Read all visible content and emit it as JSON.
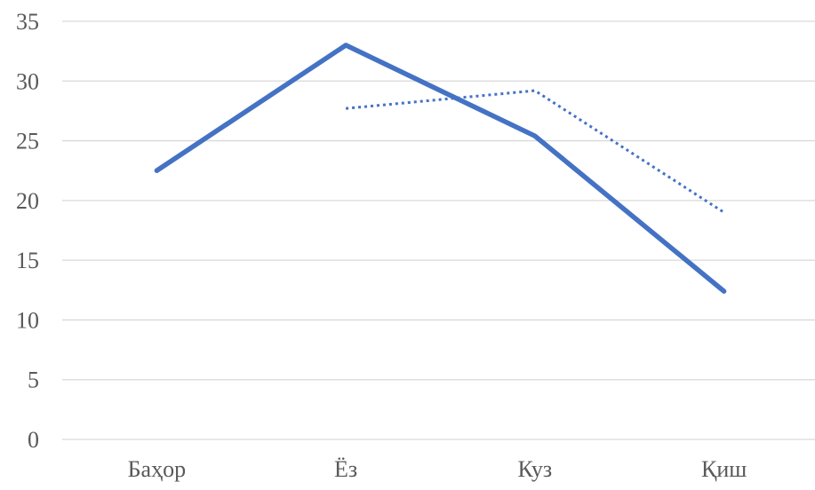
{
  "chart_data": {
    "type": "line",
    "title": "",
    "xlabel": "",
    "ylabel": "",
    "categories": [
      "Баҳор",
      "Ёз",
      "Куз",
      "Қиш"
    ],
    "ylim": [
      0,
      35
    ],
    "yticks": [
      0,
      5,
      10,
      15,
      20,
      25,
      30,
      35
    ],
    "grid": true,
    "legend": "none",
    "series": [
      {
        "values": [
          22.5,
          33.0,
          25.4,
          12.4
        ],
        "color": "#4472c4",
        "style": "solid"
      },
      {
        "values": [
          null,
          27.7,
          29.2,
          19.0
        ],
        "color": "#4472c4",
        "style": "dotted"
      }
    ]
  }
}
